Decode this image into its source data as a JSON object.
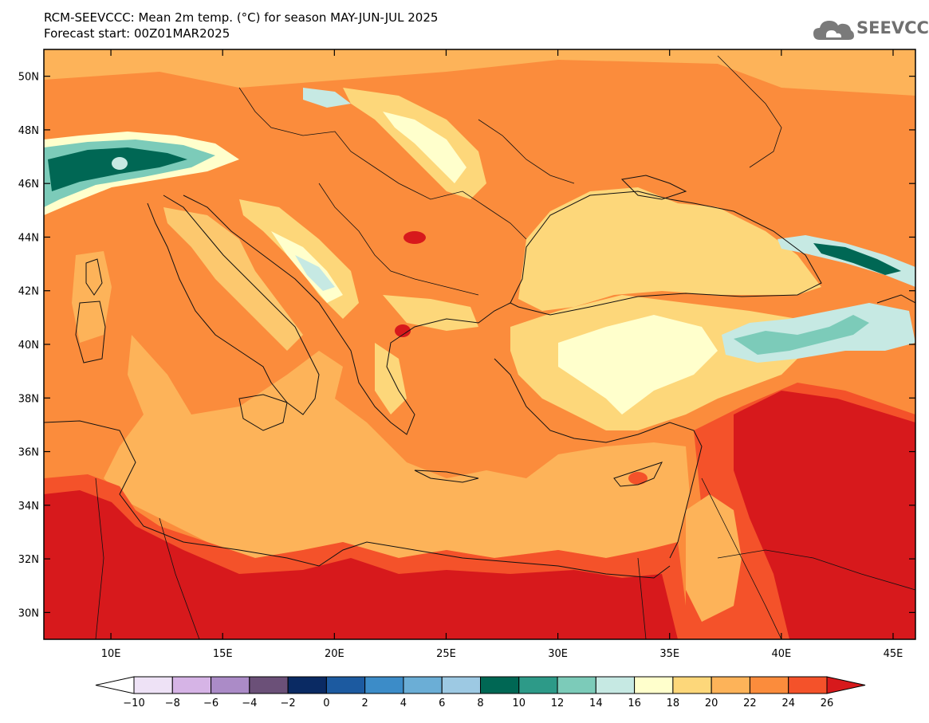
{
  "title": {
    "line1": "RCM-SEEVCCC: Mean 2m temp. (°C) for season MAY-JUN-JUL 2025",
    "line2": "Forecast start: 00Z01MAR2025"
  },
  "logo": {
    "text": "SEEVCCC",
    "icon": "cloud-icon"
  },
  "map": {
    "lon_range": [
      7,
      46
    ],
    "lat_range": [
      29,
      51
    ],
    "lat_ticks": [
      "50N",
      "48N",
      "46N",
      "44N",
      "42N",
      "40N",
      "38N",
      "36N",
      "34N",
      "32N",
      "30N"
    ],
    "lon_ticks": [
      "10E",
      "15E",
      "20E",
      "25E",
      "30E",
      "35E",
      "40E",
      "45E"
    ]
  },
  "colorbar": {
    "labels": [
      "−10",
      "−8",
      "−6",
      "−4",
      "−2",
      "0",
      "2",
      "4",
      "6",
      "8",
      "10",
      "12",
      "14",
      "16",
      "18",
      "20",
      "22",
      "24",
      "26"
    ],
    "colors": [
      "#ffffff",
      "#eee2f6",
      "#d6b4e6",
      "#ab8bc7",
      "#6b5078",
      "#0a2a63",
      "#1c5aa0",
      "#3c8cc8",
      "#6baed6",
      "#9dc9e3",
      "#006754",
      "#2d9a88",
      "#7ccbb9",
      "#c6e9e3",
      "#ffffcc",
      "#fdd77a",
      "#fdb359",
      "#fb8c3c",
      "#f4522a",
      "#d7191c"
    ]
  }
}
